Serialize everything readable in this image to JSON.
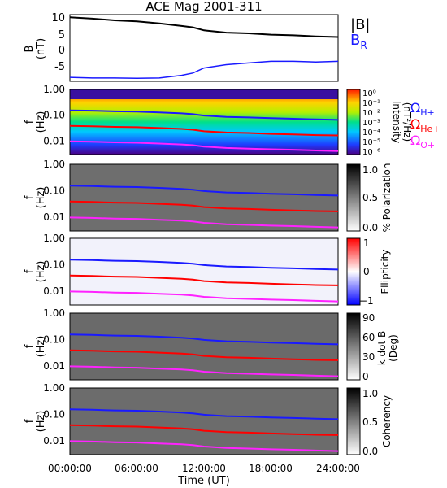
{
  "title": "ACE Mag 2001-311",
  "xlabel": "Time (UT)",
  "xticks": [
    "00:00:00",
    "06:00:00",
    "12:00:00",
    "18:00:00",
    "24:00:00"
  ],
  "colors": {
    "B_total": "#000000",
    "B_R": "#1a1aff",
    "omega_H": "#1a1aff",
    "omega_He": "#ff0000",
    "omega_O": "#ff22ff"
  },
  "chart_data": [
    {
      "type": "line",
      "panel": "B",
      "ylabel": [
        "B",
        "(nT)"
      ],
      "ylim": [
        -9,
        11
      ],
      "yticks": [
        "10",
        "5",
        "0",
        "-5"
      ],
      "legend": [
        {
          "label": "|B|",
          "color": "#000000"
        },
        {
          "label": "B",
          "sub": "R",
          "color": "#1a1aff"
        }
      ],
      "x_hours": [
        0,
        2,
        4,
        6,
        8,
        10,
        11,
        12,
        14,
        16,
        18,
        20,
        22,
        24
      ],
      "series": [
        {
          "name": "|B|",
          "values": [
            10.2,
            9.8,
            9.3,
            9.0,
            8.4,
            7.6,
            7.2,
            6.3,
            5.6,
            5.4,
            5.0,
            4.8,
            4.5,
            4.3
          ]
        },
        {
          "name": "B_R",
          "values": [
            -7.8,
            -8.0,
            -8.0,
            -8.1,
            -8.0,
            -7.2,
            -6.5,
            -5.0,
            -4.0,
            -3.5,
            -3.0,
            -3.0,
            -3.2,
            -3.0
          ]
        }
      ]
    },
    {
      "type": "heatmap",
      "panel": "power",
      "ylabel": [
        "f",
        "(Hz)"
      ],
      "yscale": "log",
      "ylim": [
        0.003,
        1.0
      ],
      "yticks": [
        "1.00",
        "0.10",
        "0.01"
      ],
      "colorbar_label": [
        "Intensity",
        "(nT²/Hz)"
      ],
      "colorbar_ticks": [
        "10⁰",
        "10⁻¹",
        "10⁻²",
        "10⁻³",
        "10⁻⁴",
        "10⁻⁵",
        "10⁻⁶"
      ],
      "legend": [
        {
          "label": "Ω",
          "sub": "H+",
          "color": "#1a1aff"
        },
        {
          "label": "Ω",
          "sub": "He+",
          "color": "#ff0000"
        },
        {
          "label": "Ω",
          "sub": "O+",
          "color": "#ff22ff"
        }
      ]
    },
    {
      "type": "heatmap",
      "panel": "polarization",
      "ylabel": [
        "f",
        "(Hz)"
      ],
      "yscale": "log",
      "ylim": [
        0.003,
        1.0
      ],
      "yticks": [
        "1.00",
        "0.10",
        "0.01"
      ],
      "colorbar_label": [
        "% Polarization"
      ],
      "colorbar_ticks": [
        "1.0",
        "0.5",
        "0.0"
      ]
    },
    {
      "type": "heatmap",
      "panel": "ellipticity",
      "ylabel": [
        "f",
        "(Hz)"
      ],
      "yscale": "log",
      "ylim": [
        0.003,
        1.0
      ],
      "yticks": [
        "1.00",
        "0.10",
        "0.01"
      ],
      "colorbar_label": [
        "Ellipticity"
      ],
      "colorbar_ticks": [
        "1",
        "0",
        "−1"
      ]
    },
    {
      "type": "heatmap",
      "panel": "kdotb",
      "ylabel": [
        "f",
        "(Hz)"
      ],
      "yscale": "log",
      "ylim": [
        0.003,
        1.0
      ],
      "yticks": [
        "1.00",
        "0.10",
        "0.01"
      ],
      "colorbar_label": [
        "k dot B",
        "(Deg)"
      ],
      "colorbar_ticks": [
        "90",
        "60",
        "30",
        "0"
      ]
    },
    {
      "type": "heatmap",
      "panel": "coherency",
      "ylabel": [
        "f",
        "(Hz)"
      ],
      "yscale": "log",
      "ylim": [
        0.003,
        1.0
      ],
      "yticks": [
        "1.00",
        "0.10",
        "0.01"
      ],
      "colorbar_label": [
        "Coherency"
      ],
      "colorbar_ticks": [
        "1.0",
        "0.5",
        "0.0"
      ]
    }
  ],
  "gyrofrequency_lines": {
    "x_hours": [
      0,
      2,
      4,
      6,
      8,
      10,
      11,
      12,
      14,
      16,
      18,
      20,
      22,
      24
    ],
    "series": [
      {
        "name": "ΩH+",
        "values": [
          0.155,
          0.15,
          0.142,
          0.138,
          0.128,
          0.118,
          0.11,
          0.097,
          0.086,
          0.082,
          0.077,
          0.073,
          0.069,
          0.066
        ]
      },
      {
        "name": "ΩHe+",
        "values": [
          0.039,
          0.0375,
          0.0355,
          0.0345,
          0.032,
          0.0295,
          0.0275,
          0.024,
          0.0215,
          0.0205,
          0.019,
          0.018,
          0.017,
          0.0165
        ]
      },
      {
        "name": "ΩO+",
        "values": [
          0.0097,
          0.0094,
          0.0089,
          0.0086,
          0.008,
          0.0074,
          0.0069,
          0.0061,
          0.0054,
          0.0051,
          0.0048,
          0.0046,
          0.0043,
          0.0041
        ]
      }
    ]
  }
}
